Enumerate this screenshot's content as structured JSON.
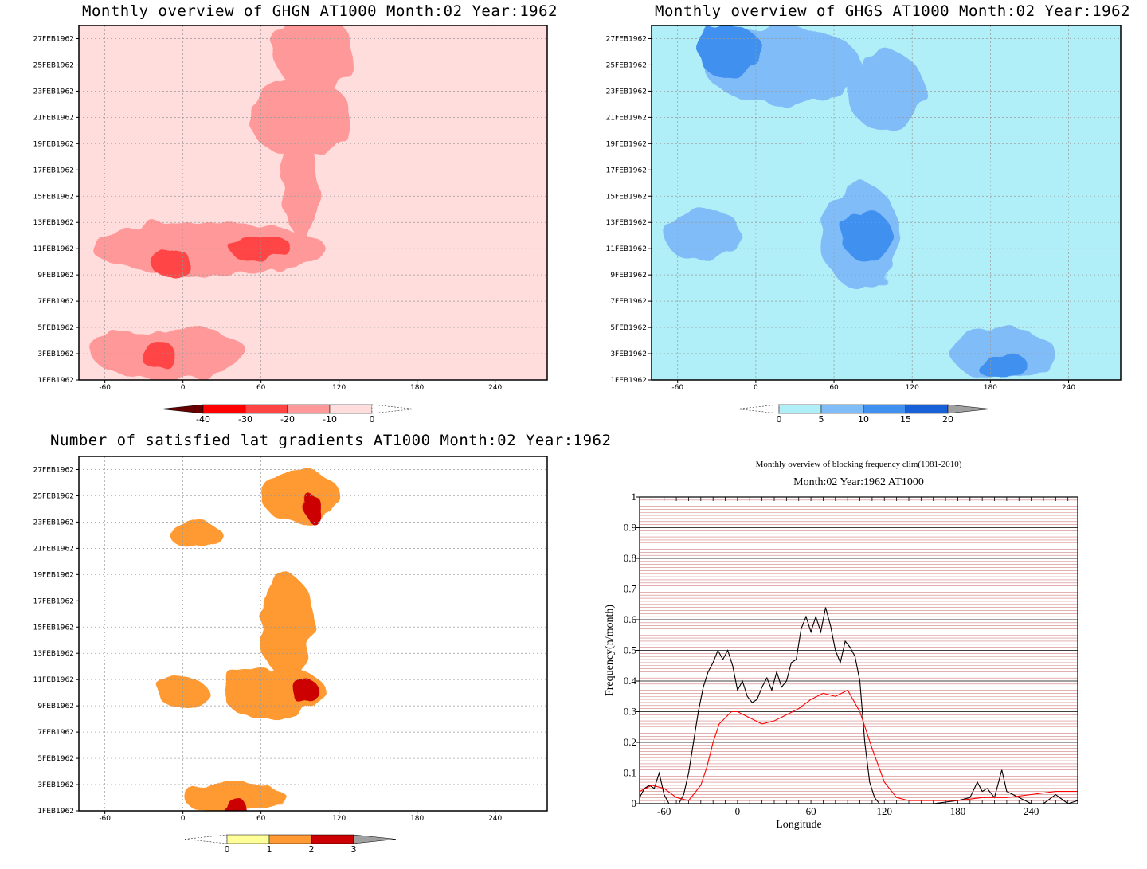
{
  "colors": {
    "red": [
      "#660000",
      "#ff0000",
      "#ff4444",
      "#ff9999",
      "#ffdddd",
      "#ffffff"
    ],
    "blue": [
      "#ffffff",
      "#b0eef8",
      "#80bcf8",
      "#4090f0",
      "#1860d8",
      "#a0a0a0"
    ],
    "yor": [
      "#ffffff",
      "#ffff99",
      "#ff9933",
      "#cc0000",
      "#a0a0a0"
    ]
  },
  "chart_data": [
    {
      "type": "heatmap",
      "title": "Monthly overview of GHGN AT1000 Month:02 Year:1962",
      "x_ticks": [
        "-60",
        "0",
        "60",
        "120",
        "180",
        "240"
      ],
      "x_tick_values": [
        -60,
        0,
        60,
        120,
        180,
        240
      ],
      "xlim": [
        -80,
        280
      ],
      "y_ticks": [
        "1FEB1962",
        "3FEB1962",
        "5FEB1962",
        "7FEB1962",
        "9FEB1962",
        "11FEB1962",
        "13FEB1962",
        "15FEB1962",
        "17FEB1962",
        "19FEB1962",
        "21FEB1962",
        "23FEB1962",
        "25FEB1962",
        "27FEB1962"
      ],
      "ylim": [
        1,
        28
      ],
      "colorbar": {
        "levels": [
          "-40",
          "-30",
          "-20",
          "-10",
          "0"
        ]
      },
      "regions": [
        {
          "level": 3,
          "day": 26,
          "lon": 100,
          "rx": 30,
          "ry": 3
        },
        {
          "level": 3,
          "day": 21,
          "lon": 90,
          "rx": 40,
          "ry": 3
        },
        {
          "level": 3,
          "day": 16,
          "lon": 90,
          "rx": 14,
          "ry": 4
        },
        {
          "level": 3,
          "day": 11,
          "lon": 20,
          "rx": 90,
          "ry": 2
        },
        {
          "level": 3,
          "day": 3,
          "lon": -10,
          "rx": 60,
          "ry": 2
        },
        {
          "level": 2,
          "day": 11,
          "lon": 60,
          "rx": 24,
          "ry": 1
        },
        {
          "level": 2,
          "day": 10,
          "lon": -10,
          "rx": 16,
          "ry": 1
        },
        {
          "level": 2,
          "day": 3,
          "lon": -20,
          "rx": 14,
          "ry": 1
        }
      ]
    },
    {
      "type": "heatmap",
      "title": "Monthly overview of GHGS AT1000 Month:02 Year:1962",
      "x_ticks": [
        "-60",
        "0",
        "60",
        "120",
        "180",
        "240"
      ],
      "x_tick_values": [
        -60,
        0,
        60,
        120,
        180,
        240
      ],
      "xlim": [
        -80,
        280
      ],
      "y_ticks": [
        "1FEB1962",
        "3FEB1962",
        "5FEB1962",
        "7FEB1962",
        "9FEB1962",
        "11FEB1962",
        "13FEB1962",
        "15FEB1962",
        "17FEB1962",
        "19FEB1962",
        "21FEB1962",
        "23FEB1962",
        "25FEB1962",
        "27FEB1962"
      ],
      "ylim": [
        1,
        28
      ],
      "colorbar": {
        "levels": [
          "0",
          "5",
          "10",
          "15",
          "20"
        ]
      },
      "regions": [
        {
          "level": 2,
          "day": 25,
          "lon": 20,
          "rx": 60,
          "ry": 3
        },
        {
          "level": 2,
          "day": 23,
          "lon": 100,
          "rx": 30,
          "ry": 3
        },
        {
          "level": 2,
          "day": 12,
          "lon": 80,
          "rx": 30,
          "ry": 4
        },
        {
          "level": 2,
          "day": 12,
          "lon": -40,
          "rx": 30,
          "ry": 2
        },
        {
          "level": 2,
          "day": 3,
          "lon": 190,
          "rx": 40,
          "ry": 2
        },
        {
          "level": 3,
          "day": 26,
          "lon": -20,
          "rx": 25,
          "ry": 2
        },
        {
          "level": 3,
          "day": 12,
          "lon": 85,
          "rx": 18,
          "ry": 2
        },
        {
          "level": 3,
          "day": 2,
          "lon": 190,
          "rx": 20,
          "ry": 1
        }
      ]
    },
    {
      "type": "heatmap",
      "title": "Number of satisfied lat gradients AT1000 Month:02 Year:1962",
      "x_ticks": [
        "-60",
        "0",
        "60",
        "120",
        "180",
        "240"
      ],
      "x_tick_values": [
        -60,
        0,
        60,
        120,
        180,
        240
      ],
      "xlim": [
        -80,
        280
      ],
      "y_ticks": [
        "1FEB1962",
        "3FEB1962",
        "5FEB1962",
        "7FEB1962",
        "9FEB1962",
        "11FEB1962",
        "13FEB1962",
        "15FEB1962",
        "17FEB1962",
        "19FEB1962",
        "21FEB1962",
        "23FEB1962",
        "25FEB1962",
        "27FEB1962"
      ],
      "ylim": [
        1,
        28
      ],
      "colorbar": {
        "levels": [
          "0",
          "1",
          "2",
          "3"
        ]
      },
      "regions": [
        {
          "level": 2,
          "day": 25,
          "lon": 90,
          "rx": 30,
          "ry": 2
        },
        {
          "level": 2,
          "day": 22,
          "lon": 10,
          "rx": 20,
          "ry": 1
        },
        {
          "level": 2,
          "day": 15,
          "lon": 80,
          "rx": 20,
          "ry": 4
        },
        {
          "level": 2,
          "day": 10,
          "lon": 70,
          "rx": 40,
          "ry": 2
        },
        {
          "level": 2,
          "day": 10,
          "lon": 0,
          "rx": 20,
          "ry": 1
        },
        {
          "level": 2,
          "day": 2,
          "lon": 40,
          "rx": 40,
          "ry": 1
        },
        {
          "level": 3,
          "day": 24,
          "lon": 100,
          "rx": 7,
          "ry": 1
        },
        {
          "level": 3,
          "day": 10,
          "lon": 95,
          "rx": 10,
          "ry": 1
        },
        {
          "level": 3,
          "day": 1,
          "lon": 40,
          "rx": 10,
          "ry": 1
        }
      ]
    },
    {
      "type": "line",
      "title": "Monthly overview of blocking frequency clim(1981-2010)",
      "subtitle": "Month:02 Year:1962  AT1000",
      "xlabel": "Longitude",
      "ylabel": "Frequency(n/month)",
      "xlim": [
        -80,
        278
      ],
      "ylim": [
        0,
        1
      ],
      "x_ticks": [
        "-60",
        "0",
        "60",
        "120",
        "180",
        "240"
      ],
      "x_tick_values": [
        -60,
        0,
        60,
        120,
        180,
        240
      ],
      "y_ticks": [
        "0",
        "0.1",
        "0.2",
        "0.3",
        "0.4",
        "0.5",
        "0.6",
        "0.7",
        "0.8",
        "0.9",
        "1"
      ],
      "y_tick_values": [
        0,
        0.1,
        0.2,
        0.3,
        0.4,
        0.5,
        0.6,
        0.7,
        0.8,
        0.9,
        1
      ],
      "series": [
        {
          "name": "black",
          "color": "#000000",
          "x": [
            -80,
            -76,
            -72,
            -68,
            -64,
            -60,
            -56,
            -52,
            -48,
            -44,
            -40,
            -36,
            -32,
            -28,
            -24,
            -20,
            -16,
            -12,
            -8,
            -4,
            0,
            4,
            8,
            12,
            16,
            20,
            24,
            28,
            32,
            36,
            40,
            44,
            48,
            52,
            56,
            60,
            64,
            68,
            72,
            76,
            80,
            84,
            88,
            92,
            96,
            100,
            104,
            108,
            112,
            116,
            120,
            124,
            128,
            140,
            160,
            180,
            190,
            196,
            200,
            204,
            210,
            216,
            220,
            230,
            240,
            250,
            260,
            270,
            278
          ],
          "y": [
            0.02,
            0.05,
            0.06,
            0.05,
            0.1,
            0.03,
            0.0,
            0.0,
            0.0,
            0.03,
            0.1,
            0.2,
            0.3,
            0.38,
            0.43,
            0.46,
            0.5,
            0.47,
            0.5,
            0.45,
            0.37,
            0.4,
            0.35,
            0.33,
            0.34,
            0.38,
            0.41,
            0.37,
            0.43,
            0.38,
            0.4,
            0.46,
            0.47,
            0.57,
            0.61,
            0.56,
            0.61,
            0.56,
            0.64,
            0.58,
            0.5,
            0.46,
            0.53,
            0.51,
            0.48,
            0.4,
            0.2,
            0.07,
            0.02,
            0.0,
            0.0,
            0.0,
            0.0,
            0.0,
            0.0,
            0.01,
            0.02,
            0.07,
            0.04,
            0.05,
            0.02,
            0.11,
            0.04,
            0.02,
            0.0,
            0.0,
            0.03,
            0.0,
            0.01
          ]
        },
        {
          "name": "red",
          "color": "#ff0000",
          "x": [
            -80,
            -70,
            -60,
            -50,
            -40,
            -30,
            -25,
            -20,
            -15,
            -10,
            -5,
            0,
            5,
            10,
            20,
            30,
            40,
            50,
            60,
            70,
            80,
            90,
            100,
            110,
            120,
            130,
            140,
            160,
            180,
            200,
            220,
            240,
            260,
            278
          ],
          "y": [
            0.04,
            0.06,
            0.05,
            0.02,
            0.01,
            0.06,
            0.12,
            0.2,
            0.26,
            0.28,
            0.3,
            0.3,
            0.29,
            0.28,
            0.26,
            0.27,
            0.29,
            0.31,
            0.34,
            0.36,
            0.35,
            0.37,
            0.3,
            0.18,
            0.07,
            0.02,
            0.01,
            0.01,
            0.01,
            0.02,
            0.02,
            0.03,
            0.04,
            0.04
          ]
        }
      ]
    }
  ]
}
